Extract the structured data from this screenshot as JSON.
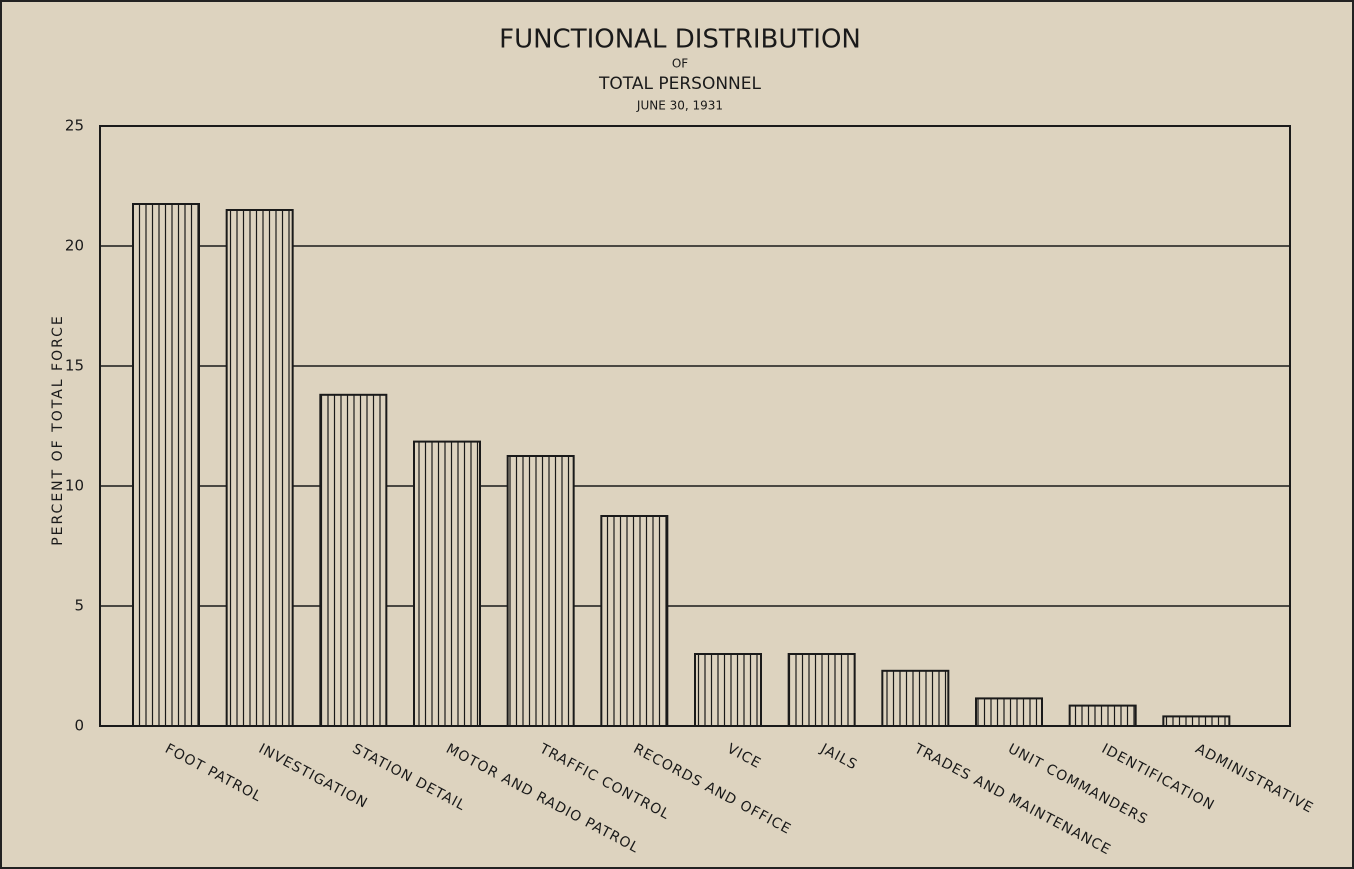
{
  "chart_data": {
    "type": "bar",
    "title": "FUNCTIONAL DISTRIBUTION",
    "subtitle": [
      "OF",
      "TOTAL PERSONNEL",
      "JUNE 30, 1931"
    ],
    "y_label": "PERCENT OF TOTAL FORCE",
    "categories": [
      "FOOT PATROL",
      "INVESTIGATION",
      "STATION DETAIL",
      "MOTOR AND RADIO PATROL",
      "TRAFFIC CONTROL",
      "RECORDS AND OFFICE",
      "VICE",
      "JAILS",
      "TRADES AND MAINTENANCE",
      "UNIT COMMANDERS",
      "IDENTIFICATION",
      "ADMINISTRATIVE"
    ],
    "values": [
      21.75,
      21.5,
      13.8,
      11.85,
      11.25,
      8.75,
      3.0,
      3.0,
      2.3,
      1.15,
      0.85,
      0.4
    ],
    "color": "#1a1a1a",
    "ylim": [
      0,
      25
    ],
    "yticks": [
      0,
      5,
      10,
      15,
      20,
      25
    ],
    "grid": true
  }
}
